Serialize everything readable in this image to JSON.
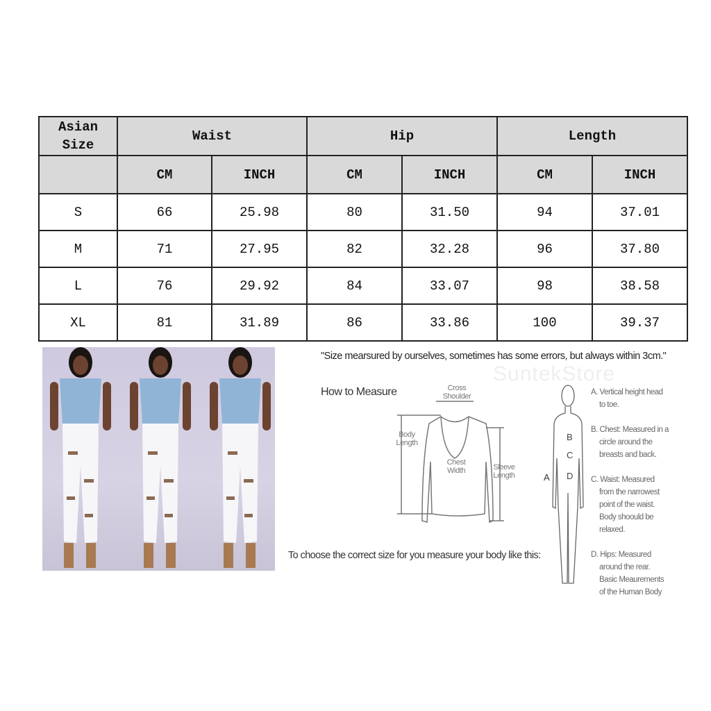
{
  "table": {
    "size_header": "Asian Size",
    "groups": [
      "Waist",
      "Hip",
      "Length"
    ],
    "units": [
      "CM",
      "INCH",
      "CM",
      "INCH",
      "CM",
      "INCH"
    ],
    "rows": [
      {
        "size": "S",
        "values": [
          "66",
          "25.98",
          "80",
          "31.50",
          "94",
          "37.01"
        ]
      },
      {
        "size": "M",
        "values": [
          "71",
          "27.95",
          "82",
          "32.28",
          "96",
          "37.80"
        ]
      },
      {
        "size": "L",
        "values": [
          "76",
          "29.92",
          "84",
          "33.07",
          "98",
          "38.58"
        ]
      },
      {
        "size": "XL",
        "values": [
          "81",
          "31.89",
          "86",
          "33.86",
          "100",
          "39.37"
        ]
      }
    ],
    "header_bg": "#d9d9d9"
  },
  "note": "\"Size mearsured by ourselves, sometimes has some errors, but always within 3cm.\"",
  "guide": {
    "title": "How to Measure",
    "watermark": "SuntekStore",
    "garment_labels": {
      "cross_shoulder": "Cross Shoulder",
      "body_length": "Body Length",
      "chest_width": "Chest Width",
      "sleeve_length": "Sleeve Length"
    },
    "body_markers": [
      "A",
      "B",
      "C",
      "D"
    ],
    "choose_text": "To choose the correct size for you measure your body like this:",
    "descriptions": [
      [
        "A. Vertical height head",
        "to toe."
      ],
      [
        "B. Chest: Measured in a",
        "circle around the",
        "breasts and back."
      ],
      [
        "C. Waist: Measured",
        "from the narrowest",
        "point of the waist.",
        "Body shoould be",
        "relaxed."
      ],
      [
        "D. Hips: Measured",
        "around the rear.",
        "Basic Meaurements",
        "of the Human Body"
      ]
    ]
  }
}
